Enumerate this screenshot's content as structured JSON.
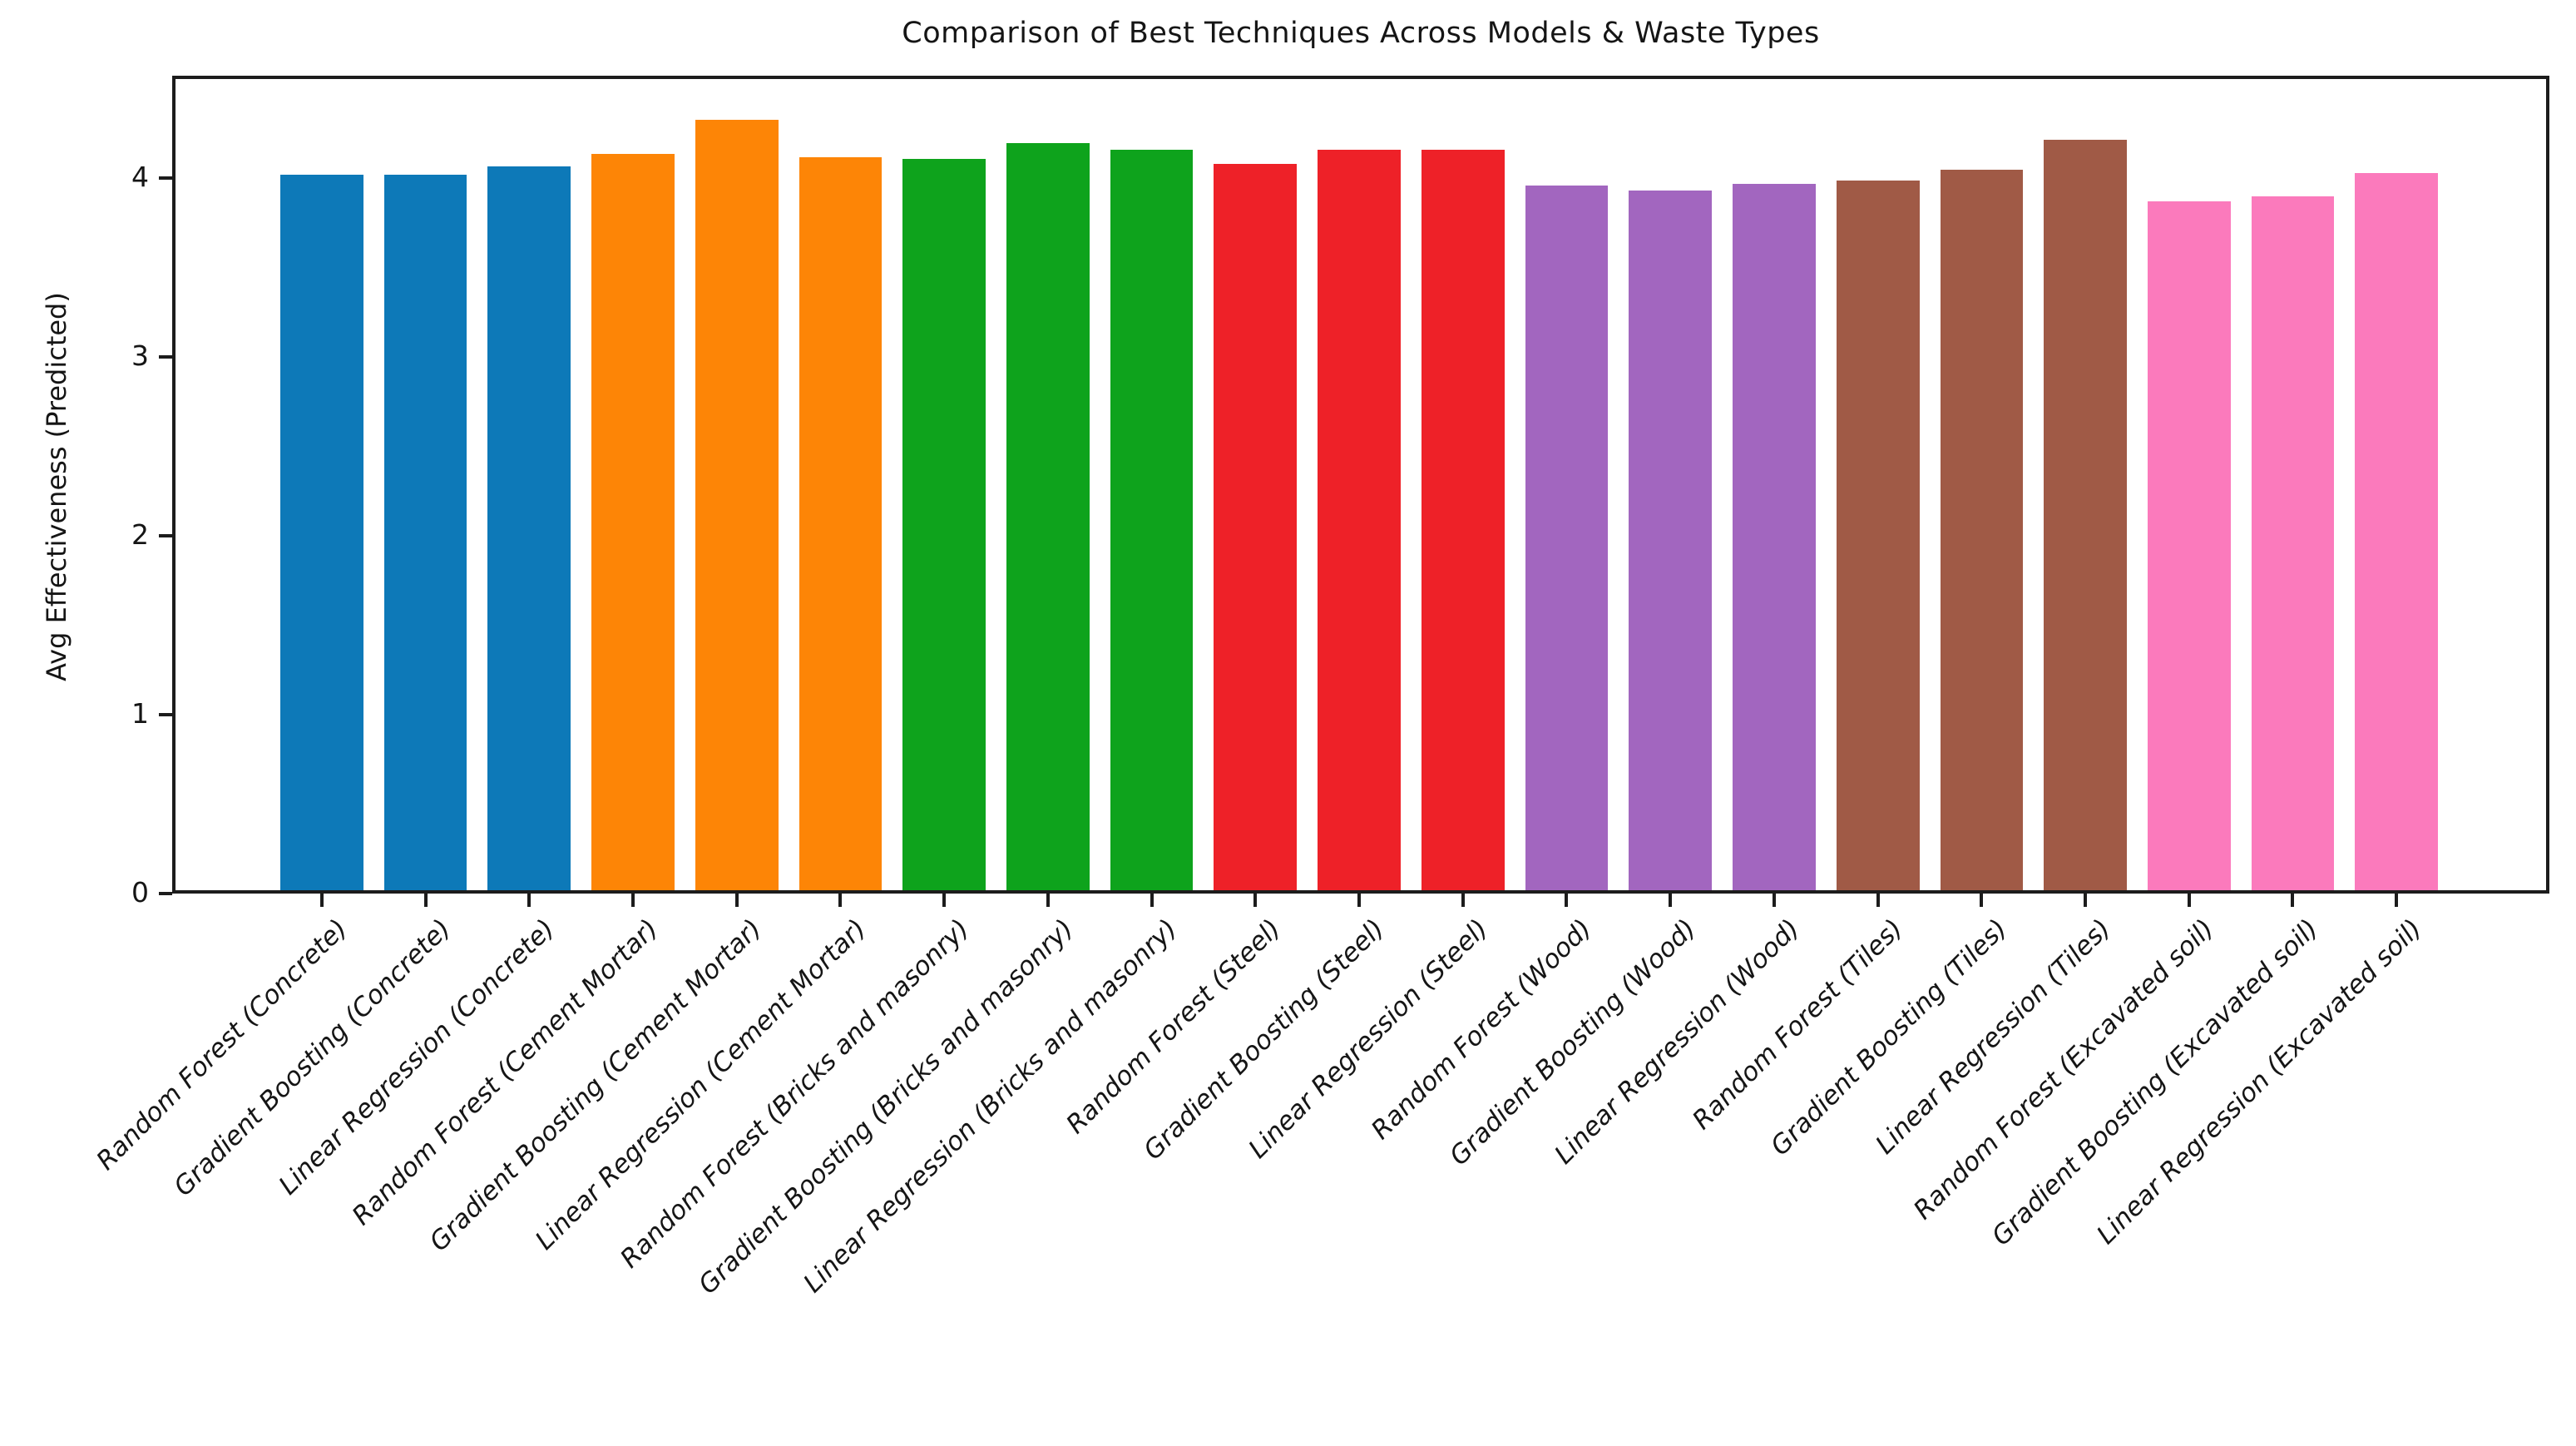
{
  "chart_data": {
    "type": "bar",
    "title": "Comparison of Best Techniques Across Models & Waste Types",
    "xlabel": "",
    "ylabel": "Avg Effectiveness (Predicted)",
    "ylim": [
      0,
      4.57
    ],
    "yticks": [
      0,
      1,
      2,
      3,
      4
    ],
    "grid": false,
    "legend": "none",
    "categories": [
      "Random Forest (Concrete)",
      "Gradient Boosting (Concrete)",
      "Linear Regression (Concrete)",
      "Random Forest (Cement Mortar)",
      "Gradient Boosting (Cement Mortar)",
      "Linear Regression (Cement Mortar)",
      "Random Forest (Bricks and masonry)",
      "Gradient Boosting (Bricks and masonry)",
      "Linear Regression (Bricks and masonry)",
      "Random Forest (Steel)",
      "Gradient Boosting (Steel)",
      "Linear Regression (Steel)",
      "Random Forest (Wood)",
      "Gradient Boosting (Wood)",
      "Linear Regression (Wood)",
      "Random Forest (Tiles)",
      "Gradient Boosting (Tiles)",
      "Linear Regression (Tiles)",
      "Random Forest (Excavated soil)",
      "Gradient Boosting (Excavated soil)",
      "Linear Regression (Excavated soil)"
    ],
    "values": [
      4.03,
      4.03,
      4.08,
      4.15,
      4.34,
      4.13,
      4.12,
      4.21,
      4.17,
      4.09,
      4.17,
      4.17,
      3.97,
      3.94,
      3.98,
      4.0,
      4.06,
      4.23,
      3.88,
      3.91,
      4.04
    ],
    "bar_colors": [
      "#0d79b8",
      "#0d79b8",
      "#0d79b8",
      "#fd8506",
      "#fd8506",
      "#fd8506",
      "#0ea31c",
      "#0ea31c",
      "#0ea31c",
      "#ee2128",
      "#ee2128",
      "#ee2128",
      "#a266bf",
      "#a266bf",
      "#a266bf",
      "#a05a46",
      "#a05a46",
      "#a05a46",
      "#fb7abc",
      "#fb7abc",
      "#fb7abc"
    ],
    "group_colors": {
      "Concrete": "#0d79b8",
      "Cement Mortar": "#fd8506",
      "Bricks and masonry": "#0ea31c",
      "Steel": "#ee2128",
      "Wood": "#a266bf",
      "Tiles": "#a05a46",
      "Excavated soil": "#fb7abc"
    },
    "axis_color": "#1c1c1c"
  }
}
